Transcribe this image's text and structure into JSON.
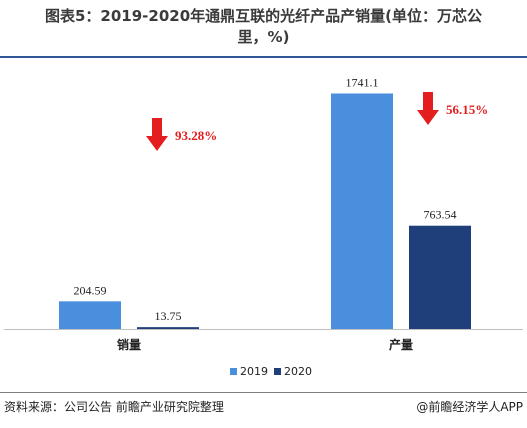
{
  "title": "图表5：2019-2020年通鼎互联的光纤产品产销量(单位：万芯公里，%)",
  "source": "资料来源：公司公告 前瞻产业研究院整理",
  "brand": "@前瞻经济学人APP",
  "colors": {
    "2019": "#4a8ede",
    "2020": "#1f3f7a",
    "arrow": "#e41e1e",
    "rule": "#2f5597"
  },
  "chart_data": {
    "type": "bar",
    "categories": [
      "销量",
      "产量"
    ],
    "series": [
      {
        "name": "2019",
        "values": [
          204.59,
          1741.1
        ],
        "labels": [
          "204.59",
          "1741.1"
        ]
      },
      {
        "name": "2020",
        "values": [
          13.75,
          763.54
        ],
        "labels": [
          "13.75",
          "763.54"
        ]
      }
    ],
    "annotations": [
      {
        "category": "销量",
        "text": "93.28%",
        "icon": "down-arrow-icon"
      },
      {
        "category": "产量",
        "text": "56.15%",
        "icon": "down-arrow-icon"
      }
    ],
    "ylim": [
      0,
      1900
    ],
    "grid": false,
    "legend": "bottom-center"
  }
}
